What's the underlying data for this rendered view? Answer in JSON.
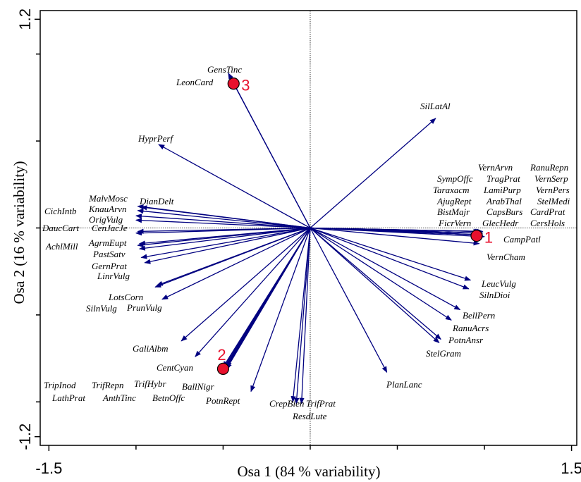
{
  "chart_data": {
    "type": "biplot",
    "x_label": "Osa 1 (84 % variability)",
    "y_label": "Osa 2 (16 % variability)",
    "xlim": [
      -1.55,
      1.53
    ],
    "ylim": [
      -1.25,
      1.25
    ],
    "xticks": [
      -1.5,
      1.5
    ],
    "yticks": [
      -1.2,
      1.2
    ],
    "minor_xticks": [
      -1,
      -0.5,
      0,
      0.5,
      1
    ],
    "minor_yticks": [
      -1,
      -0.5,
      0,
      0.5,
      1
    ],
    "arrow_color": "#000080",
    "sample_color": "#e8112d",
    "species": [
      {
        "name": "GensTinc",
        "x": -0.47,
        "y": 0.89
      },
      {
        "name": "LeonCard",
        "x": -0.45,
        "y": 0.85
      },
      {
        "name": "SilLatAl",
        "x": 0.72,
        "y": 0.63
      },
      {
        "name": "HyprPerf",
        "x": -0.87,
        "y": 0.48
      },
      {
        "name": "VernArvn",
        "x": 0.99,
        "y": -0.03
      },
      {
        "name": "RanuRepn",
        "x": 0.98,
        "y": -0.02
      },
      {
        "name": "SympOffc",
        "x": 0.97,
        "y": -0.03
      },
      {
        "name": "TragPrat",
        "x": 0.99,
        "y": -0.04
      },
      {
        "name": "VernSerp",
        "x": 0.98,
        "y": -0.03
      },
      {
        "name": "Taraxacm",
        "x": 0.97,
        "y": -0.02
      },
      {
        "name": "LamiPurp",
        "x": 0.98,
        "y": -0.04
      },
      {
        "name": "VernPers",
        "x": 0.99,
        "y": -0.02
      },
      {
        "name": "AjugRept",
        "x": 0.97,
        "y": -0.04
      },
      {
        "name": "ArabThal",
        "x": 0.98,
        "y": -0.02
      },
      {
        "name": "StelMedi",
        "x": 0.99,
        "y": -0.03
      },
      {
        "name": "BistMajr",
        "x": 0.97,
        "y": -0.03
      },
      {
        "name": "CapsBurs",
        "x": 0.98,
        "y": -0.03
      },
      {
        "name": "CardPrat",
        "x": 0.99,
        "y": -0.04
      },
      {
        "name": "FicrVern",
        "x": 0.96,
        "y": -0.03
      },
      {
        "name": "GlecHedr",
        "x": 0.97,
        "y": -0.04
      },
      {
        "name": "CersHols",
        "x": 0.98,
        "y": -0.04
      },
      {
        "name": "CampPatl",
        "x": 1.0,
        "y": -0.05
      },
      {
        "name": "VernCham",
        "x": 0.97,
        "y": -0.09
      },
      {
        "name": "LeucVulg",
        "x": 0.92,
        "y": -0.3
      },
      {
        "name": "SilnDioi",
        "x": 0.91,
        "y": -0.35
      },
      {
        "name": "BellPern",
        "x": 0.86,
        "y": -0.47
      },
      {
        "name": "RanuAcrs",
        "x": 0.81,
        "y": -0.53
      },
      {
        "name": "PotnAnsr",
        "x": 0.75,
        "y": -0.64
      },
      {
        "name": "StelGram",
        "x": 0.74,
        "y": -0.66
      },
      {
        "name": "PlanLanc",
        "x": 0.44,
        "y": -0.83
      },
      {
        "name": "TrifPrat",
        "x": -0.05,
        "y": -1.01
      },
      {
        "name": "ResdLute",
        "x": -0.08,
        "y": -1.01
      },
      {
        "name": "CrepBien",
        "x": -0.1,
        "y": -1.0
      },
      {
        "name": "PotnRept",
        "x": -0.34,
        "y": -0.94
      },
      {
        "name": "BallNigr",
        "x": -0.48,
        "y": -0.8
      },
      {
        "name": "TrifHybr",
        "x": -0.49,
        "y": -0.82
      },
      {
        "name": "CentCyan",
        "x": -0.66,
        "y": -0.74
      },
      {
        "name": "GaliAlbm",
        "x": -0.74,
        "y": -0.65
      },
      {
        "name": "PrunVulg",
        "x": -0.85,
        "y": -0.41
      },
      {
        "name": "SilnVulg",
        "x": -0.89,
        "y": -0.34
      },
      {
        "name": "LotsCorn",
        "x": -0.88,
        "y": -0.33
      },
      {
        "name": "LinrVulg",
        "x": -0.95,
        "y": -0.2
      },
      {
        "name": "GernPrat",
        "x": -0.97,
        "y": -0.17
      },
      {
        "name": "PastSatv",
        "x": -0.98,
        "y": -0.12
      },
      {
        "name": "AchlMill",
        "x": -0.99,
        "y": -0.1
      },
      {
        "name": "AgrmEupt",
        "x": -0.98,
        "y": -0.09
      },
      {
        "name": "DaucCart",
        "x": -1.0,
        "y": -0.03
      },
      {
        "name": "CenJacJe",
        "x": -0.99,
        "y": -0.02
      },
      {
        "name": "CichIntb",
        "x": -1.0,
        "y": 0.045
      },
      {
        "name": "OrigVulg",
        "x": -1.0,
        "y": 0.07
      },
      {
        "name": "KnauArvn",
        "x": -0.99,
        "y": 0.1
      },
      {
        "name": "MalvMosc",
        "x": -0.99,
        "y": 0.125
      },
      {
        "name": "DianDelt",
        "x": -0.97,
        "y": 0.12
      },
      {
        "name": "TripInod",
        "x": -0.5,
        "y": -0.82
      },
      {
        "name": "TrifRepn",
        "x": -0.5,
        "y": -0.81
      },
      {
        "name": "LathPrat",
        "x": -0.49,
        "y": -0.81
      },
      {
        "name": "AnthTinc",
        "x": -0.5,
        "y": -0.8
      },
      {
        "name": "BetnOffc",
        "x": -0.48,
        "y": -0.81
      }
    ],
    "samples": [
      {
        "label": "1",
        "x": 0.955,
        "y": -0.045
      },
      {
        "label": "2",
        "x": -0.5,
        "y": -0.81
      },
      {
        "label": "3",
        "x": -0.44,
        "y": 0.83
      }
    ]
  }
}
